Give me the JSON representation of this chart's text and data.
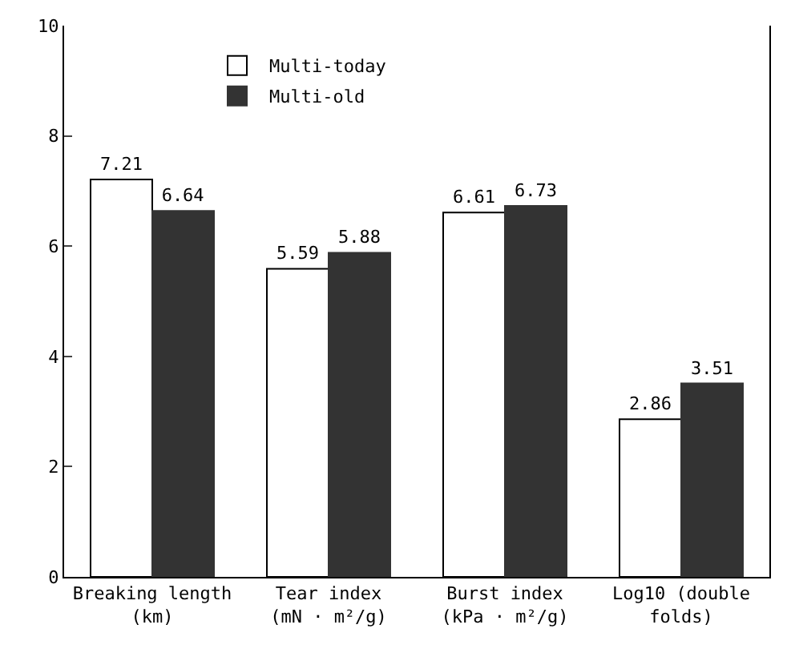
{
  "chart_data": {
    "type": "bar",
    "categories": [
      "Breaking length\n(km)",
      "Tear index\n(mN · m²/g)",
      "Burst index\n(kPa · m²/g)",
      "Log10 (double\nfolds)"
    ],
    "series": [
      {
        "name": "Multi-today",
        "color": "#ffffff",
        "values": [
          7.21,
          5.59,
          6.61,
          2.86
        ]
      },
      {
        "name": "Multi-old",
        "color": "#333333",
        "values": [
          6.64,
          5.88,
          6.73,
          3.51
        ]
      }
    ],
    "ylim": [
      0,
      10
    ],
    "yticks": [
      0,
      2,
      4,
      6,
      8,
      10
    ],
    "grid": false,
    "legend": "top left",
    "data_labels": true
  }
}
